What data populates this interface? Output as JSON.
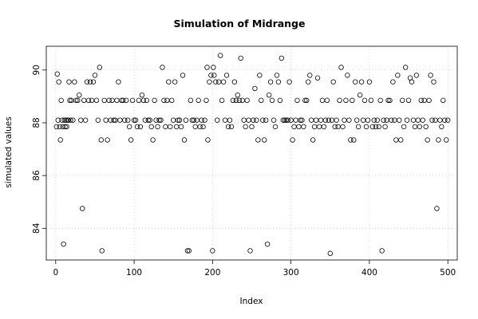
{
  "chart_data": {
    "type": "scatter",
    "title": "Simulation of Midrange",
    "xlabel": "Index",
    "ylabel": "simulated values",
    "xlim": [
      -12,
      512
    ],
    "ylim": [
      82.8,
      90.9
    ],
    "xticks": [
      0,
      100,
      200,
      300,
      400,
      500
    ],
    "yticks": [
      84,
      86,
      88,
      90
    ],
    "grid": true,
    "marker": "open-circle",
    "series": [
      {
        "values": [
          [
            1,
            87.85
          ],
          [
            2,
            89.85
          ],
          [
            3,
            88.1
          ],
          [
            4,
            89.55
          ],
          [
            5,
            87.85
          ],
          [
            6,
            87.35
          ],
          [
            7,
            88.85
          ],
          [
            8,
            88.1
          ],
          [
            9,
            87.85
          ],
          [
            10,
            83.4
          ],
          [
            11,
            88.1
          ],
          [
            12,
            87.85
          ],
          [
            13,
            88.1
          ],
          [
            14,
            87.85
          ],
          [
            15,
            88.1
          ],
          [
            16,
            88.1
          ],
          [
            17,
            89.55
          ],
          [
            18,
            88.85
          ],
          [
            19,
            88.1
          ],
          [
            20,
            88.85
          ],
          [
            22,
            88.1
          ],
          [
            24,
            89.55
          ],
          [
            26,
            88.85
          ],
          [
            28,
            88.85
          ],
          [
            30,
            89.05
          ],
          [
            32,
            88.1
          ],
          [
            34,
            84.75
          ],
          [
            36,
            88.85
          ],
          [
            38,
            88.1
          ],
          [
            40,
            89.55
          ],
          [
            42,
            88.85
          ],
          [
            44,
            89.55
          ],
          [
            46,
            88.85
          ],
          [
            48,
            89.55
          ],
          [
            50,
            89.8
          ],
          [
            52,
            88.85
          ],
          [
            54,
            88.1
          ],
          [
            56,
            90.1
          ],
          [
            58,
            87.35
          ],
          [
            59,
            83.15
          ],
          [
            62,
            88.85
          ],
          [
            64,
            88.1
          ],
          [
            66,
            87.35
          ],
          [
            68,
            88.85
          ],
          [
            70,
            88.1
          ],
          [
            72,
            88.85
          ],
          [
            74,
            88.1
          ],
          [
            76,
            88.1
          ],
          [
            78,
            88.85
          ],
          [
            80,
            89.55
          ],
          [
            82,
            88.1
          ],
          [
            84,
            88.85
          ],
          [
            86,
            88.85
          ],
          [
            88,
            88.1
          ],
          [
            90,
            88.85
          ],
          [
            92,
            88.1
          ],
          [
            94,
            87.85
          ],
          [
            96,
            87.35
          ],
          [
            98,
            88.85
          ],
          [
            100,
            88.1
          ],
          [
            102,
            88.1
          ],
          [
            104,
            87.85
          ],
          [
            106,
            88.85
          ],
          [
            108,
            87.85
          ],
          [
            110,
            89.05
          ],
          [
            112,
            88.85
          ],
          [
            114,
            88.1
          ],
          [
            116,
            88.85
          ],
          [
            118,
            88.1
          ],
          [
            120,
            88.1
          ],
          [
            122,
            87.85
          ],
          [
            124,
            87.35
          ],
          [
            126,
            88.85
          ],
          [
            128,
            88.1
          ],
          [
            130,
            87.85
          ],
          [
            132,
            88.1
          ],
          [
            134,
            88.1
          ],
          [
            136,
            90.1
          ],
          [
            138,
            88.85
          ],
          [
            140,
            87.85
          ],
          [
            142,
            88.85
          ],
          [
            144,
            89.55
          ],
          [
            146,
            87.85
          ],
          [
            148,
            88.85
          ],
          [
            150,
            88.1
          ],
          [
            152,
            89.55
          ],
          [
            154,
            87.85
          ],
          [
            156,
            88.1
          ],
          [
            158,
            88.1
          ],
          [
            160,
            87.85
          ],
          [
            162,
            89.8
          ],
          [
            164,
            87.35
          ],
          [
            166,
            88.1
          ],
          [
            168,
            83.15
          ],
          [
            170,
            83.15
          ],
          [
            172,
            88.85
          ],
          [
            174,
            88.1
          ],
          [
            176,
            88.1
          ],
          [
            178,
            87.85
          ],
          [
            180,
            88.1
          ],
          [
            182,
            88.85
          ],
          [
            184,
            87.85
          ],
          [
            186,
            88.1
          ],
          [
            188,
            87.85
          ],
          [
            190,
            88.1
          ],
          [
            192,
            88.85
          ],
          [
            193,
            90.1
          ],
          [
            194,
            87.35
          ],
          [
            196,
            89.55
          ],
          [
            198,
            89.8
          ],
          [
            200,
            83.15
          ],
          [
            201,
            90.1
          ],
          [
            202,
            89.8
          ],
          [
            204,
            89.55
          ],
          [
            206,
            88.1
          ],
          [
            208,
            89.55
          ],
          [
            210,
            90.55
          ],
          [
            212,
            88.85
          ],
          [
            214,
            89.55
          ],
          [
            216,
            88.1
          ],
          [
            218,
            89.8
          ],
          [
            220,
            87.85
          ],
          [
            222,
            88.1
          ],
          [
            224,
            87.85
          ],
          [
            226,
            88.85
          ],
          [
            228,
            89.55
          ],
          [
            230,
            88.85
          ],
          [
            232,
            89.05
          ],
          [
            234,
            88.85
          ],
          [
            236,
            90.45
          ],
          [
            238,
            88.85
          ],
          [
            240,
            88.1
          ],
          [
            242,
            87.85
          ],
          [
            244,
            88.85
          ],
          [
            246,
            88.1
          ],
          [
            248,
            83.15
          ],
          [
            250,
            87.85
          ],
          [
            252,
            88.1
          ],
          [
            254,
            89.3
          ],
          [
            256,
            88.1
          ],
          [
            258,
            87.35
          ],
          [
            260,
            89.8
          ],
          [
            262,
            88.85
          ],
          [
            264,
            88.1
          ],
          [
            266,
            87.35
          ],
          [
            268,
            88.1
          ],
          [
            270,
            83.4
          ],
          [
            272,
            89.05
          ],
          [
            274,
            89.55
          ],
          [
            276,
            88.85
          ],
          [
            278,
            88.1
          ],
          [
            280,
            87.85
          ],
          [
            282,
            89.8
          ],
          [
            284,
            89.55
          ],
          [
            286,
            88.85
          ],
          [
            288,
            90.45
          ],
          [
            290,
            88.1
          ],
          [
            292,
            88.1
          ],
          [
            294,
            88.1
          ],
          [
            296,
            88.1
          ],
          [
            298,
            89.55
          ],
          [
            300,
            88.1
          ],
          [
            302,
            87.35
          ],
          [
            304,
            87.85
          ],
          [
            306,
            88.1
          ],
          [
            308,
            88.85
          ],
          [
            310,
            87.85
          ],
          [
            312,
            88.1
          ],
          [
            314,
            88.1
          ],
          [
            316,
            87.85
          ],
          [
            318,
            88.85
          ],
          [
            320,
            88.85
          ],
          [
            322,
            89.55
          ],
          [
            324,
            89.8
          ],
          [
            326,
            88.1
          ],
          [
            328,
            87.35
          ],
          [
            330,
            87.85
          ],
          [
            332,
            88.1
          ],
          [
            334,
            89.7
          ],
          [
            336,
            87.85
          ],
          [
            338,
            88.1
          ],
          [
            340,
            88.85
          ],
          [
            342,
            87.85
          ],
          [
            344,
            88.1
          ],
          [
            346,
            88.85
          ],
          [
            348,
            88.1
          ],
          [
            350,
            83.05
          ],
          [
            352,
            88.1
          ],
          [
            354,
            89.55
          ],
          [
            356,
            87.85
          ],
          [
            358,
            88.1
          ],
          [
            360,
            87.85
          ],
          [
            362,
            88.85
          ],
          [
            364,
            90.1
          ],
          [
            366,
            87.85
          ],
          [
            368,
            88.1
          ],
          [
            370,
            88.85
          ],
          [
            372,
            89.8
          ],
          [
            374,
            88.1
          ],
          [
            376,
            87.35
          ],
          [
            378,
            88.85
          ],
          [
            380,
            87.35
          ],
          [
            382,
            89.55
          ],
          [
            384,
            88.1
          ],
          [
            386,
            87.85
          ],
          [
            388,
            89.05
          ],
          [
            390,
            89.55
          ],
          [
            392,
            88.1
          ],
          [
            394,
            88.85
          ],
          [
            396,
            87.85
          ],
          [
            398,
            88.1
          ],
          [
            400,
            89.55
          ],
          [
            402,
            88.85
          ],
          [
            404,
            87.85
          ],
          [
            406,
            88.1
          ],
          [
            408,
            87.85
          ],
          [
            410,
            88.1
          ],
          [
            412,
            87.85
          ],
          [
            414,
            88.85
          ],
          [
            416,
            83.15
          ],
          [
            418,
            88.1
          ],
          [
            420,
            87.85
          ],
          [
            422,
            88.1
          ],
          [
            424,
            88.85
          ],
          [
            426,
            88.85
          ],
          [
            428,
            88.1
          ],
          [
            430,
            89.55
          ],
          [
            432,
            88.1
          ],
          [
            434,
            87.35
          ],
          [
            436,
            89.8
          ],
          [
            438,
            88.1
          ],
          [
            440,
            87.35
          ],
          [
            442,
            88.85
          ],
          [
            444,
            87.85
          ],
          [
            446,
            90.1
          ],
          [
            448,
            88.1
          ],
          [
            450,
            88.85
          ],
          [
            452,
            89.7
          ],
          [
            454,
            89.55
          ],
          [
            456,
            88.1
          ],
          [
            458,
            87.85
          ],
          [
            460,
            89.8
          ],
          [
            462,
            88.1
          ],
          [
            464,
            87.85
          ],
          [
            466,
            88.85
          ],
          [
            468,
            88.1
          ],
          [
            470,
            88.85
          ],
          [
            472,
            87.85
          ],
          [
            474,
            87.35
          ],
          [
            476,
            88.85
          ],
          [
            478,
            89.8
          ],
          [
            480,
            88.1
          ],
          [
            482,
            89.55
          ],
          [
            484,
            88.1
          ],
          [
            486,
            84.75
          ],
          [
            488,
            87.35
          ],
          [
            490,
            88.1
          ],
          [
            492,
            87.85
          ],
          [
            494,
            88.85
          ],
          [
            496,
            88.1
          ],
          [
            498,
            87.35
          ],
          [
            500,
            88.1
          ]
        ]
      }
    ]
  }
}
